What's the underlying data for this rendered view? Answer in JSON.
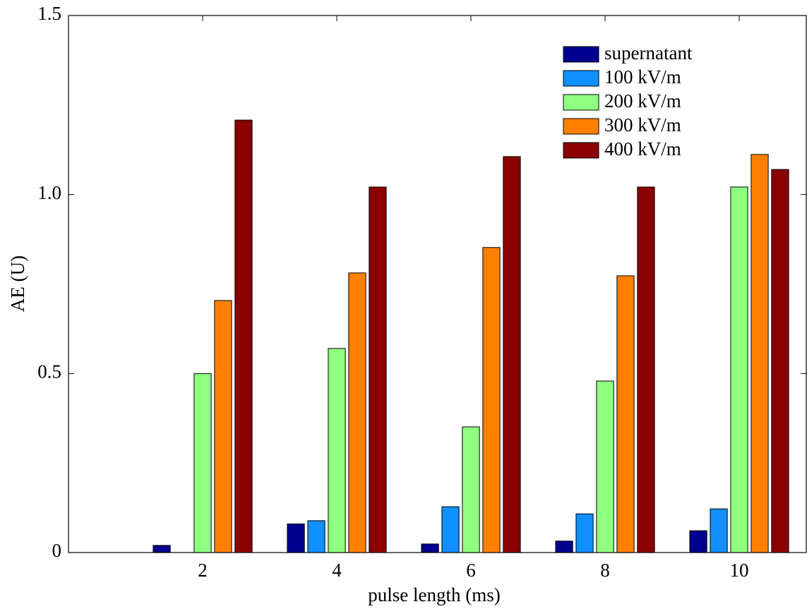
{
  "chart_data": {
    "type": "bar",
    "xlabel": "pulse length (ms)",
    "ylabel": "AE (U)",
    "x": [
      2,
      4,
      6,
      8,
      10
    ],
    "series": [
      {
        "name": "supernatant",
        "color": "#00008f",
        "values": [
          0.02,
          0.08,
          0.024,
          0.032,
          0.061
        ]
      },
      {
        "name": "100 kV/m",
        "color": "#108fff",
        "values": [
          0,
          0.089,
          0.128,
          0.108,
          0.122
        ]
      },
      {
        "name": "200 kV/m",
        "color": "#8fff80",
        "values": [
          0.5,
          0.57,
          0.351,
          0.479,
          1.021
        ]
      },
      {
        "name": "300 kV/m",
        "color": "#ff8000",
        "values": [
          0.704,
          0.781,
          0.852,
          0.773,
          1.112
        ]
      },
      {
        "name": "400 kV/m",
        "color": "#8b0000",
        "values": [
          1.208,
          1.021,
          1.106,
          1.021,
          1.07
        ]
      }
    ],
    "xlim": [
      0,
      11
    ],
    "xticks": [
      2,
      4,
      6,
      8,
      10
    ],
    "ylim": [
      0,
      1.5
    ],
    "yticks": [
      0,
      0.5,
      {
        "value": 1,
        "label": "1.0"
      },
      1.5
    ],
    "legend": "upper right",
    "grid": false
  }
}
